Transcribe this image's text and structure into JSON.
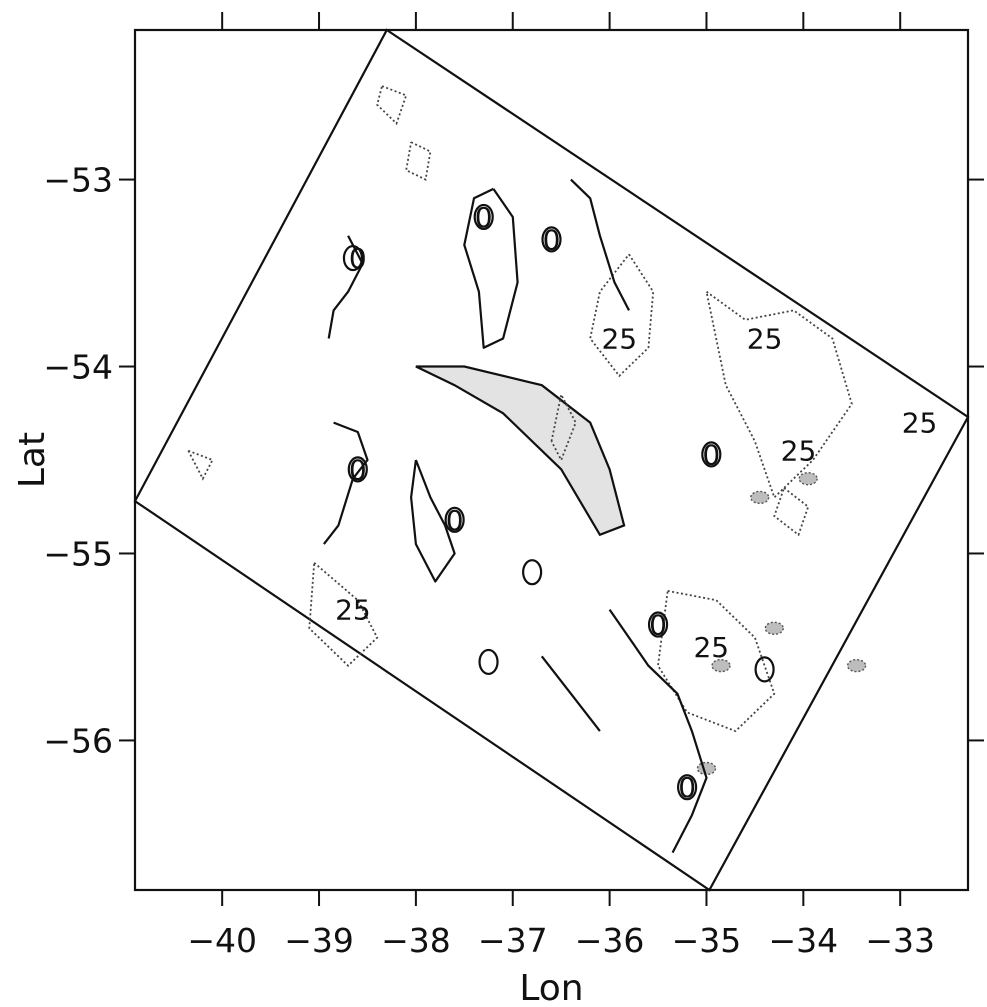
{
  "chart_data": {
    "type": "contour",
    "title": "",
    "xlabel": "Lon",
    "ylabel": "Lat",
    "xlim": [
      -40.9,
      -32.3
    ],
    "ylim": [
      -56.8,
      -52.2
    ],
    "x_ticks": [
      -40,
      -39,
      -38,
      -37,
      -36,
      -35,
      -34,
      -33
    ],
    "y_ticks": [
      -53,
      -54,
      -55,
      -56
    ],
    "x_tick_labels": [
      "−40",
      "−39",
      "−38",
      "−37",
      "−36",
      "−35",
      "−34",
      "−33"
    ],
    "y_tick_labels": [
      "−53",
      "−54",
      "−55",
      "−56"
    ],
    "contour_levels": [
      0,
      25
    ],
    "contour_label_text": {
      "zero": "0",
      "twenty_five": "25"
    },
    "swath_corners": [
      {
        "lon": -38.3,
        "lat": -52.2
      },
      {
        "lon": -32.3,
        "lat": -54.27
      },
      {
        "lon": -34.97,
        "lat": -56.8
      },
      {
        "lon": -40.9,
        "lat": -54.72
      }
    ],
    "shaded_region": [
      {
        "lon": -38.0,
        "lat": -54.0
      },
      {
        "lon": -37.5,
        "lat": -54.0
      },
      {
        "lon": -36.7,
        "lat": -54.1
      },
      {
        "lon": -36.2,
        "lat": -54.3
      },
      {
        "lon": -36.0,
        "lat": -54.55
      },
      {
        "lon": -35.85,
        "lat": -54.85
      },
      {
        "lon": -36.1,
        "lat": -54.9
      },
      {
        "lon": -36.5,
        "lat": -54.55
      },
      {
        "lon": -37.1,
        "lat": -54.25
      },
      {
        "lon": -37.6,
        "lat": -54.1
      }
    ],
    "contours_0": [
      [
        [
          -37.2,
          -53.05
        ],
        [
          -37.0,
          -53.2
        ],
        [
          -36.95,
          -53.55
        ],
        [
          -37.1,
          -53.85
        ],
        [
          -37.3,
          -53.9
        ],
        [
          -37.35,
          -53.6
        ],
        [
          -37.5,
          -53.35
        ],
        [
          -37.4,
          -53.1
        ],
        [
          -37.2,
          -53.05
        ]
      ],
      [
        [
          -36.4,
          -53.0
        ],
        [
          -36.2,
          -53.1
        ],
        [
          -36.1,
          -53.3
        ],
        [
          -35.95,
          -53.55
        ],
        [
          -35.8,
          -53.7
        ]
      ],
      [
        [
          -38.7,
          -53.3
        ],
        [
          -38.55,
          -53.45
        ],
        [
          -38.7,
          -53.6
        ],
        [
          -38.85,
          -53.7
        ],
        [
          -38.9,
          -53.85
        ]
      ],
      [
        [
          -38.85,
          -54.3
        ],
        [
          -38.6,
          -54.35
        ],
        [
          -38.5,
          -54.5
        ],
        [
          -38.65,
          -54.6
        ],
        [
          -38.8,
          -54.85
        ],
        [
          -38.95,
          -54.95
        ]
      ],
      [
        [
          -38.0,
          -54.5
        ],
        [
          -37.85,
          -54.7
        ],
        [
          -37.7,
          -54.85
        ],
        [
          -37.6,
          -55.0
        ],
        [
          -37.8,
          -55.15
        ],
        [
          -38.0,
          -54.95
        ],
        [
          -38.05,
          -54.7
        ],
        [
          -38.0,
          -54.5
        ]
      ],
      [
        [
          -36.0,
          -55.3
        ],
        [
          -35.8,
          -55.45
        ],
        [
          -35.6,
          -55.6
        ],
        [
          -35.3,
          -55.75
        ],
        [
          -35.15,
          -55.95
        ],
        [
          -35.0,
          -56.2
        ],
        [
          -35.15,
          -56.4
        ],
        [
          -35.35,
          -56.6
        ]
      ],
      [
        [
          -36.7,
          -55.55
        ],
        [
          -36.4,
          -55.75
        ],
        [
          -36.1,
          -55.95
        ]
      ]
    ],
    "contours_0_small": [
      {
        "lon": -37.3,
        "lat": -53.2
      },
      {
        "lon": -36.6,
        "lat": -53.32
      },
      {
        "lon": -38.65,
        "lat": -53.42
      },
      {
        "lon": -38.6,
        "lat": -54.55
      },
      {
        "lon": -34.95,
        "lat": -54.47
      },
      {
        "lon": -37.6,
        "lat": -54.82
      },
      {
        "lon": -36.8,
        "lat": -55.1
      },
      {
        "lon": -35.5,
        "lat": -55.38
      },
      {
        "lon": -34.4,
        "lat": -55.62
      },
      {
        "lon": -35.2,
        "lat": -56.25
      },
      {
        "lon": -37.25,
        "lat": -55.58
      }
    ],
    "contours_25": [
      [
        [
          -35.8,
          -53.4
        ],
        [
          -35.55,
          -53.6
        ],
        [
          -35.6,
          -53.9
        ],
        [
          -35.9,
          -54.05
        ],
        [
          -36.2,
          -53.85
        ],
        [
          -36.1,
          -53.6
        ],
        [
          -35.8,
          -53.4
        ]
      ],
      [
        [
          -35.0,
          -53.6
        ],
        [
          -34.6,
          -53.75
        ],
        [
          -34.1,
          -53.7
        ],
        [
          -33.7,
          -53.85
        ],
        [
          -33.5,
          -54.2
        ],
        [
          -33.9,
          -54.5
        ],
        [
          -34.3,
          -54.7
        ],
        [
          -34.5,
          -54.4
        ],
        [
          -34.8,
          -54.1
        ],
        [
          -35.0,
          -53.6
        ]
      ],
      [
        [
          -35.4,
          -55.2
        ],
        [
          -34.9,
          -55.25
        ],
        [
          -34.5,
          -55.45
        ],
        [
          -34.3,
          -55.75
        ],
        [
          -34.7,
          -55.95
        ],
        [
          -35.2,
          -55.85
        ],
        [
          -35.5,
          -55.6
        ],
        [
          -35.4,
          -55.2
        ]
      ],
      [
        [
          -39.05,
          -55.05
        ],
        [
          -38.6,
          -55.25
        ],
        [
          -38.4,
          -55.45
        ],
        [
          -38.7,
          -55.6
        ],
        [
          -39.1,
          -55.4
        ],
        [
          -39.05,
          -55.05
        ]
      ],
      [
        [
          -38.35,
          -52.5
        ],
        [
          -38.1,
          -52.55
        ],
        [
          -38.2,
          -52.7
        ],
        [
          -38.4,
          -52.6
        ],
        [
          -38.35,
          -52.5
        ]
      ],
      [
        [
          -38.05,
          -52.8
        ],
        [
          -37.85,
          -52.85
        ],
        [
          -37.9,
          -53.0
        ],
        [
          -38.1,
          -52.95
        ],
        [
          -38.05,
          -52.8
        ]
      ],
      [
        [
          -36.6,
          -54.4
        ],
        [
          -36.5,
          -54.15
        ],
        [
          -36.35,
          -54.3
        ],
        [
          -36.5,
          -54.5
        ],
        [
          -36.6,
          -54.4
        ]
      ],
      [
        [
          -34.2,
          -54.65
        ],
        [
          -33.95,
          -54.75
        ],
        [
          -34.05,
          -54.9
        ],
        [
          -34.3,
          -54.8
        ],
        [
          -34.2,
          -54.65
        ]
      ],
      [
        [
          -40.35,
          -54.45
        ],
        [
          -40.1,
          -54.5
        ],
        [
          -40.2,
          -54.6
        ],
        [
          -40.35,
          -54.45
        ]
      ]
    ],
    "contours_25_filled": [
      {
        "lon": -34.45,
        "lat": -54.7
      },
      {
        "lon": -33.95,
        "lat": -54.6
      },
      {
        "lon": -34.85,
        "lat": -55.6
      },
      {
        "lon": -34.3,
        "lat": -55.4
      },
      {
        "lon": -33.45,
        "lat": -55.6
      },
      {
        "lon": -35.0,
        "lat": -56.15
      }
    ],
    "contour_labels": [
      {
        "text": "25",
        "lon": -35.9,
        "lat": -53.85
      },
      {
        "text": "25",
        "lon": -34.4,
        "lat": -53.85
      },
      {
        "text": "25",
        "lon": -34.05,
        "lat": -54.45
      },
      {
        "text": "25",
        "lon": -32.8,
        "lat": -54.3
      },
      {
        "text": "25",
        "lon": -38.65,
        "lat": -55.3
      },
      {
        "text": "25",
        "lon": -34.95,
        "lat": -55.5
      },
      {
        "text": "0",
        "lon": -38.6,
        "lat": -53.42
      },
      {
        "text": "0",
        "lon": -37.3,
        "lat": -53.2
      },
      {
        "text": "0",
        "lon": -36.6,
        "lat": -53.32
      },
      {
        "text": "0",
        "lon": -38.6,
        "lat": -54.55
      },
      {
        "text": "0",
        "lon": -34.95,
        "lat": -54.47
      },
      {
        "text": "0",
        "lon": -37.6,
        "lat": -54.82
      },
      {
        "text": "0",
        "lon": -35.5,
        "lat": -55.38
      },
      {
        "text": "0",
        "lon": -35.2,
        "lat": -56.25
      }
    ],
    "grid": false,
    "legend": "none"
  }
}
